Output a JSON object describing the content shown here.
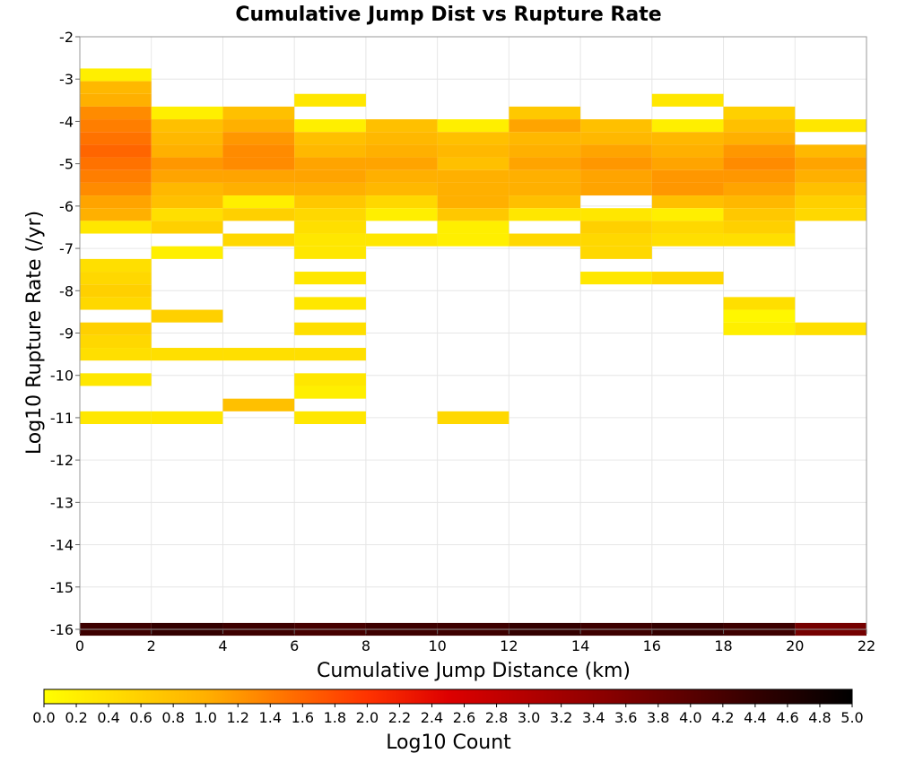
{
  "chart_data": {
    "type": "heatmap",
    "title": "Cumulative Jump Dist vs Rupture Rate",
    "xlabel": "Cumulative Jump Distance (km)",
    "ylabel": "Log10 Rupture Rate (/yr)",
    "xlim": [
      0,
      22
    ],
    "ylim": [
      -16,
      -2
    ],
    "xticks": [
      0,
      2,
      4,
      6,
      8,
      10,
      12,
      14,
      16,
      18,
      20,
      22
    ],
    "yticks": [
      -2,
      -3,
      -4,
      -5,
      -6,
      -7,
      -8,
      -9,
      -10,
      -11,
      -12,
      -13,
      -14,
      -15,
      -16
    ],
    "grid": true,
    "x_bin_width": 2,
    "y_bin_height": 0.3,
    "colorbar": {
      "label": "Log10 Count",
      "range": [
        0.0,
        5.0
      ],
      "ticks": [
        "0.0",
        "0.2",
        "0.4",
        "0.6",
        "0.8",
        "1.0",
        "1.2",
        "1.4",
        "1.6",
        "1.8",
        "2.0",
        "2.2",
        "2.4",
        "2.6",
        "2.8",
        "3.0",
        "3.2",
        "3.4",
        "3.6",
        "3.8",
        "4.0",
        "4.2",
        "4.4",
        "4.6",
        "4.8",
        "5.0"
      ],
      "colormap": [
        {
          "value": 0.0,
          "color": "#ffff00"
        },
        {
          "value": 1.0,
          "color": "#ffb000"
        },
        {
          "value": 2.0,
          "color": "#ff3300"
        },
        {
          "value": 2.5,
          "color": "#dd0000"
        },
        {
          "value": 3.5,
          "color": "#880000"
        },
        {
          "value": 4.5,
          "color": "#2a0000"
        },
        {
          "value": 5.0,
          "color": "#000000"
        }
      ]
    },
    "cells": [
      [
        0,
        -2.9,
        0.2
      ],
      [
        0,
        -3.2,
        0.9
      ],
      [
        0,
        -3.5,
        1.0
      ],
      [
        0,
        -3.8,
        1.3
      ],
      [
        0,
        -4.1,
        1.4
      ],
      [
        0,
        -4.4,
        1.5
      ],
      [
        0,
        -4.7,
        1.6
      ],
      [
        0,
        -5.0,
        1.5
      ],
      [
        0,
        -5.3,
        1.4
      ],
      [
        0,
        -5.6,
        1.3
      ],
      [
        0,
        -5.9,
        1.1
      ],
      [
        0,
        -6.2,
        1.0
      ],
      [
        0,
        -6.5,
        0.3
      ],
      [
        0,
        -7.4,
        0.4
      ],
      [
        0,
        -7.7,
        0.5
      ],
      [
        0,
        -8.0,
        0.6
      ],
      [
        0,
        -8.3,
        0.5
      ],
      [
        0,
        -8.9,
        0.6
      ],
      [
        0,
        -9.2,
        0.5
      ],
      [
        0,
        -9.5,
        0.4
      ],
      [
        0,
        -10.1,
        0.3
      ],
      [
        0,
        -11.0,
        0.3
      ],
      [
        2,
        -3.8,
        0.2
      ],
      [
        2,
        -4.1,
        0.8
      ],
      [
        2,
        -4.4,
        0.9
      ],
      [
        2,
        -4.7,
        1.0
      ],
      [
        2,
        -5.0,
        1.2
      ],
      [
        2,
        -5.3,
        1.1
      ],
      [
        2,
        -5.6,
        0.9
      ],
      [
        2,
        -5.9,
        0.8
      ],
      [
        2,
        -6.2,
        0.4
      ],
      [
        2,
        -6.5,
        0.6
      ],
      [
        2,
        -7.1,
        0.2
      ],
      [
        2,
        -8.6,
        0.6
      ],
      [
        2,
        -9.5,
        0.4
      ],
      [
        2,
        -11.0,
        0.3
      ],
      [
        4,
        -3.8,
        0.8
      ],
      [
        4,
        -4.1,
        1.0
      ],
      [
        4,
        -4.4,
        1.2
      ],
      [
        4,
        -4.7,
        1.3
      ],
      [
        4,
        -5.0,
        1.3
      ],
      [
        4,
        -5.3,
        1.1
      ],
      [
        4,
        -5.6,
        1.0
      ],
      [
        4,
        -5.9,
        0.2
      ],
      [
        4,
        -6.2,
        0.6
      ],
      [
        4,
        -6.8,
        0.5
      ],
      [
        4,
        -9.5,
        0.4
      ],
      [
        4,
        -10.7,
        0.8
      ],
      [
        6,
        -3.5,
        0.3
      ],
      [
        6,
        -4.1,
        0.2
      ],
      [
        6,
        -4.4,
        0.8
      ],
      [
        6,
        -4.7,
        0.9
      ],
      [
        6,
        -5.0,
        1.1
      ],
      [
        6,
        -5.3,
        1.1
      ],
      [
        6,
        -5.6,
        1.0
      ],
      [
        6,
        -5.9,
        0.7
      ],
      [
        6,
        -6.2,
        0.5
      ],
      [
        6,
        -6.5,
        0.4
      ],
      [
        6,
        -6.8,
        0.3
      ],
      [
        6,
        -7.1,
        0.3
      ],
      [
        6,
        -7.7,
        0.3
      ],
      [
        6,
        -8.3,
        0.3
      ],
      [
        6,
        -8.9,
        0.4
      ],
      [
        6,
        -9.5,
        0.4
      ],
      [
        6,
        -10.1,
        0.3
      ],
      [
        6,
        -10.4,
        0.2
      ],
      [
        6,
        -11.0,
        0.3
      ],
      [
        8,
        -4.1,
        0.8
      ],
      [
        8,
        -4.4,
        0.9
      ],
      [
        8,
        -4.7,
        1.0
      ],
      [
        8,
        -5.0,
        1.1
      ],
      [
        8,
        -5.3,
        1.0
      ],
      [
        8,
        -5.6,
        0.9
      ],
      [
        8,
        -5.9,
        0.5
      ],
      [
        8,
        -6.2,
        0.2
      ],
      [
        8,
        -6.8,
        0.3
      ],
      [
        10,
        -4.1,
        0.2
      ],
      [
        10,
        -4.4,
        0.8
      ],
      [
        10,
        -4.7,
        0.9
      ],
      [
        10,
        -5.0,
        0.8
      ],
      [
        10,
        -5.3,
        1.0
      ],
      [
        10,
        -5.6,
        1.0
      ],
      [
        10,
        -5.9,
        1.0
      ],
      [
        10,
        -6.2,
        0.7
      ],
      [
        10,
        -6.5,
        0.2
      ],
      [
        10,
        -6.8,
        0.2
      ],
      [
        10,
        -11.0,
        0.5
      ],
      [
        12,
        -3.8,
        0.7
      ],
      [
        12,
        -4.1,
        1.1
      ],
      [
        12,
        -4.4,
        0.9
      ],
      [
        12,
        -4.7,
        1.0
      ],
      [
        12,
        -5.0,
        1.1
      ],
      [
        12,
        -5.3,
        1.0
      ],
      [
        12,
        -5.6,
        1.0
      ],
      [
        12,
        -5.9,
        0.8
      ],
      [
        12,
        -6.2,
        0.3
      ],
      [
        12,
        -6.8,
        0.5
      ],
      [
        14,
        -4.1,
        0.8
      ],
      [
        14,
        -4.4,
        0.9
      ],
      [
        14,
        -4.7,
        1.1
      ],
      [
        14,
        -5.0,
        1.2
      ],
      [
        14,
        -5.3,
        1.1
      ],
      [
        14,
        -5.6,
        1.1
      ],
      [
        14,
        -6.2,
        0.3
      ],
      [
        14,
        -6.5,
        0.6
      ],
      [
        14,
        -6.8,
        0.5
      ],
      [
        14,
        -7.1,
        0.5
      ],
      [
        14,
        -7.7,
        0.3
      ],
      [
        16,
        -3.5,
        0.3
      ],
      [
        16,
        -4.1,
        0.2
      ],
      [
        16,
        -4.4,
        0.9
      ],
      [
        16,
        -4.7,
        1.0
      ],
      [
        16,
        -5.0,
        1.1
      ],
      [
        16,
        -5.3,
        1.2
      ],
      [
        16,
        -5.6,
        1.2
      ],
      [
        16,
        -5.9,
        0.8
      ],
      [
        16,
        -6.2,
        0.2
      ],
      [
        16,
        -6.5,
        0.5
      ],
      [
        16,
        -6.8,
        0.4
      ],
      [
        16,
        -7.7,
        0.5
      ],
      [
        18,
        -3.8,
        0.6
      ],
      [
        18,
        -4.1,
        0.8
      ],
      [
        18,
        -4.4,
        1.0
      ],
      [
        18,
        -4.7,
        1.2
      ],
      [
        18,
        -5.0,
        1.3
      ],
      [
        18,
        -5.3,
        1.2
      ],
      [
        18,
        -5.6,
        1.1
      ],
      [
        18,
        -5.9,
        0.9
      ],
      [
        18,
        -6.2,
        0.7
      ],
      [
        18,
        -6.5,
        0.6
      ],
      [
        18,
        -6.8,
        0.4
      ],
      [
        18,
        -8.3,
        0.4
      ],
      [
        18,
        -8.6,
        0.1
      ],
      [
        18,
        -8.9,
        0.2
      ],
      [
        20,
        -4.1,
        0.3
      ],
      [
        20,
        -4.7,
        0.9
      ],
      [
        20,
        -5.0,
        1.1
      ],
      [
        20,
        -5.3,
        1.0
      ],
      [
        20,
        -5.6,
        0.8
      ],
      [
        20,
        -5.9,
        0.6
      ],
      [
        20,
        -6.2,
        0.5
      ],
      [
        20,
        -8.9,
        0.4
      ],
      [
        0,
        -16.0,
        4.3
      ],
      [
        2,
        -16.0,
        4.4
      ],
      [
        4,
        -16.0,
        4.3
      ],
      [
        6,
        -16.0,
        4.2
      ],
      [
        8,
        -16.0,
        4.3
      ],
      [
        10,
        -16.0,
        4.3
      ],
      [
        12,
        -16.0,
        4.4
      ],
      [
        14,
        -16.0,
        4.3
      ],
      [
        16,
        -16.0,
        4.4
      ],
      [
        18,
        -16.0,
        4.3
      ],
      [
        20,
        -16.0,
        3.7
      ]
    ]
  }
}
